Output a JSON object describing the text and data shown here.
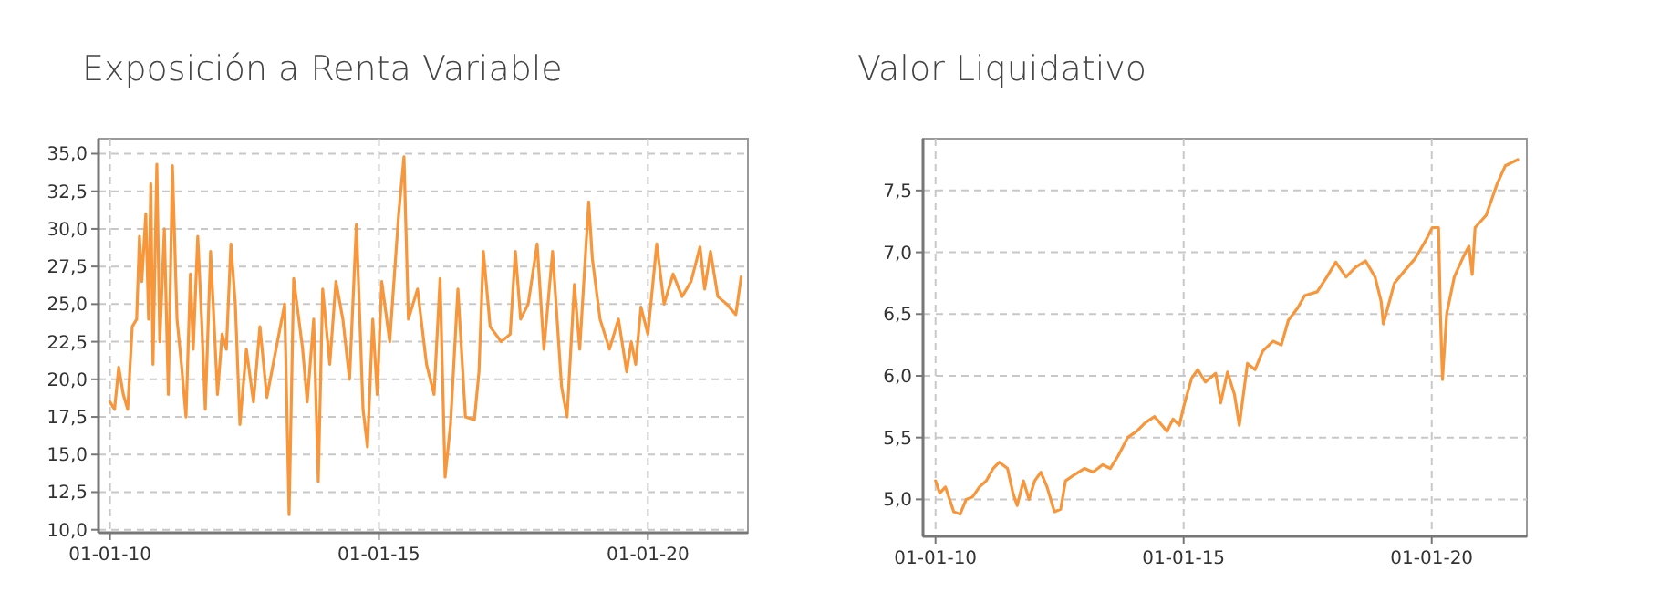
{
  "chart_data": [
    {
      "type": "line",
      "title": "Exposición a Renta Variable",
      "xlim": [
        "2009-10-15",
        "2021-11-10"
      ],
      "ylim": [
        9.8,
        36
      ],
      "xticks": [
        {
          "value": "2010-01-01",
          "label": "01-01-10"
        },
        {
          "value": "2015-01-01",
          "label": "01-01-15"
        },
        {
          "value": "2020-01-01",
          "label": "01-01-20"
        }
      ],
      "yticks": [
        {
          "value": 10,
          "label": "10,0"
        },
        {
          "value": 12.5,
          "label": "12,5"
        },
        {
          "value": 15,
          "label": "15,0"
        },
        {
          "value": 17.5,
          "label": "17,5"
        },
        {
          "value": 20,
          "label": "20,0"
        },
        {
          "value": 22.5,
          "label": "22,5"
        },
        {
          "value": 25,
          "label": "25,0"
        },
        {
          "value": 27.5,
          "label": "27,5"
        },
        {
          "value": 30,
          "label": "30,0"
        },
        {
          "value": 32.5,
          "label": "32,5"
        },
        {
          "value": 35,
          "label": "35,0"
        }
      ],
      "grid": true,
      "marker": "none",
      "line_style": "solid",
      "x": [
        "2010-01-01",
        "2010-02-01",
        "2010-03-01",
        "2010-04-01",
        "2010-05-01",
        "2010-06-01",
        "2010-07-01",
        "2010-07-20",
        "2010-08-05",
        "2010-09-01",
        "2010-09-20",
        "2010-10-05",
        "2010-10-20",
        "2010-11-15",
        "2010-12-05",
        "2011-01-05",
        "2011-02-01",
        "2011-03-01",
        "2011-04-01",
        "2011-05-01",
        "2011-06-01",
        "2011-07-01",
        "2011-07-20",
        "2011-08-20",
        "2011-09-15",
        "2011-10-10",
        "2011-11-15",
        "2012-01-01",
        "2012-02-01",
        "2012-03-01",
        "2012-04-01",
        "2012-05-01",
        "2012-06-01",
        "2012-07-15",
        "2012-09-01",
        "2012-10-15",
        "2012-12-01",
        "2013-02-01",
        "2013-04-01",
        "2013-05-01",
        "2013-06-01",
        "2013-08-01",
        "2013-09-01",
        "2013-10-15",
        "2013-11-15",
        "2013-12-15",
        "2014-02-01",
        "2014-03-15",
        "2014-05-01",
        "2014-06-15",
        "2014-08-01",
        "2014-09-15",
        "2014-10-15",
        "2014-11-20",
        "2014-12-20",
        "2015-01-20",
        "2015-03-15",
        "2015-05-15",
        "2015-06-20",
        "2015-07-20",
        "2015-09-20",
        "2015-11-20",
        "2016-01-10",
        "2016-02-20",
        "2016-03-25",
        "2016-05-01",
        "2016-06-20",
        "2016-08-10",
        "2016-10-10",
        "2016-11-10",
        "2016-12-10",
        "2017-01-25",
        "2017-04-10",
        "2017-06-10",
        "2017-07-15",
        "2017-08-20",
        "2017-10-10",
        "2017-12-10",
        "2018-01-25",
        "2018-03-25",
        "2018-05-25",
        "2018-07-01",
        "2018-08-20",
        "2018-09-25",
        "2018-11-25",
        "2018-12-20",
        "2019-02-10",
        "2019-04-15",
        "2019-06-15",
        "2019-08-10",
        "2019-09-10",
        "2019-10-10",
        "2019-11-15",
        "2020-01-01",
        "2020-03-01",
        "2020-04-20",
        "2020-06-20",
        "2020-08-20",
        "2020-10-20",
        "2020-12-20",
        "2021-01-20",
        "2021-03-01",
        "2021-04-20",
        "2021-06-20",
        "2021-08-20",
        "2021-09-25"
      ],
      "series": [
        {
          "color": "#f7963a",
          "values": [
            18.5,
            18,
            20.8,
            19,
            18,
            23.5,
            24,
            29.5,
            26.5,
            31,
            24,
            33,
            21,
            34.3,
            22.5,
            30,
            19,
            34.2,
            24,
            21,
            17.5,
            27,
            22,
            29.5,
            24,
            18,
            28.5,
            19,
            23,
            22,
            29,
            25,
            17,
            22,
            18.5,
            23.5,
            18.8,
            22,
            25,
            11,
            26.7,
            22,
            18.5,
            24,
            13.2,
            26,
            21,
            26.5,
            24,
            20,
            30.3,
            18,
            15.5,
            24,
            19,
            26.5,
            22.5,
            31,
            34.8,
            24,
            26,
            21,
            19,
            26.7,
            13.5,
            17,
            26,
            17.5,
            17.3,
            20.5,
            28.5,
            23.5,
            22.5,
            23,
            28.5,
            24,
            25,
            29,
            22,
            28.5,
            19.5,
            17.5,
            26.3,
            22,
            31.8,
            28,
            24,
            22,
            24,
            20.5,
            22.5,
            21,
            24.8,
            23,
            29,
            25,
            27,
            25.5,
            26.5,
            28.8,
            26,
            28.5,
            25.5,
            25,
            24.3,
            26.8
          ]
        }
      ]
    },
    {
      "type": "line",
      "title": "Valor Liquidativo",
      "xlim": [
        "2009-10-01",
        "2021-12-01"
      ],
      "ylim": [
        4.7,
        7.92
      ],
      "xticks": [
        {
          "value": "2010-01-01",
          "label": "01-01-10"
        },
        {
          "value": "2015-01-01",
          "label": "01-01-15"
        },
        {
          "value": "2020-01-01",
          "label": "01-01-20"
        }
      ],
      "yticks": [
        {
          "value": 5,
          "label": "5,0"
        },
        {
          "value": 5.5,
          "label": "5,5"
        },
        {
          "value": 6,
          "label": "6,0"
        },
        {
          "value": 6.5,
          "label": "6,5"
        },
        {
          "value": 7,
          "label": "7,0"
        },
        {
          "value": 7.5,
          "label": "7,5"
        }
      ],
      "grid": true,
      "marker": "none",
      "line_style": "solid",
      "x": [
        "2010-01-01",
        "2010-02-01",
        "2010-03-15",
        "2010-05-15",
        "2010-07-01",
        "2010-08-15",
        "2010-10-01",
        "2010-11-20",
        "2011-01-10",
        "2011-03-01",
        "2011-04-15",
        "2011-06-15",
        "2011-07-25",
        "2011-08-25",
        "2011-10-10",
        "2011-11-20",
        "2012-01-01",
        "2012-02-15",
        "2012-04-01",
        "2012-05-25",
        "2012-07-10",
        "2012-08-15",
        "2012-10-20",
        "2013-01-01",
        "2013-03-05",
        "2013-05-15",
        "2013-07-10",
        "2013-09-05",
        "2013-11-15",
        "2014-01-20",
        "2014-03-25",
        "2014-06-01",
        "2014-09-01",
        "2014-10-15",
        "2014-12-01",
        "2015-01-01",
        "2015-03-01",
        "2015-04-15",
        "2015-06-10",
        "2015-08-25",
        "2015-10-01",
        "2015-11-20",
        "2016-01-10",
        "2016-02-15",
        "2016-04-15",
        "2016-06-10",
        "2016-08-05",
        "2016-10-20",
        "2016-12-20",
        "2017-02-10",
        "2017-04-20",
        "2017-06-10",
        "2017-09-10",
        "2017-11-20",
        "2018-01-25",
        "2018-04-10",
        "2018-06-20",
        "2018-09-01",
        "2018-11-10",
        "2018-12-25",
        "2019-01-10",
        "2019-04-01",
        "2019-06-15",
        "2019-09-01",
        "2019-11-20",
        "2020-01-05",
        "2020-02-20",
        "2020-03-05",
        "2020-03-20",
        "2020-04-20",
        "2020-06-15",
        "2020-08-15",
        "2020-10-01",
        "2020-10-25",
        "2020-11-15",
        "2021-02-05",
        "2021-04-25",
        "2021-06-25",
        "2021-09-25"
      ],
      "series": [
        {
          "color": "#f7963a",
          "values": [
            5.15,
            5.05,
            5.1,
            4.9,
            4.88,
            5,
            5.02,
            5.1,
            5.15,
            5.25,
            5.3,
            5.25,
            5.05,
            4.95,
            5.15,
            5,
            5.15,
            5.22,
            5.1,
            4.9,
            4.92,
            5.15,
            5.2,
            5.25,
            5.22,
            5.28,
            5.25,
            5.35,
            5.5,
            5.55,
            5.62,
            5.67,
            5.55,
            5.65,
            5.6,
            5.75,
            5.98,
            6.05,
            5.95,
            6.02,
            5.78,
            6.03,
            5.85,
            5.6,
            6.1,
            6.05,
            6.2,
            6.28,
            6.25,
            6.45,
            6.55,
            6.65,
            6.68,
            6.8,
            6.92,
            6.8,
            6.88,
            6.93,
            6.8,
            6.6,
            6.42,
            6.75,
            6.85,
            6.95,
            7.1,
            7.2,
            7.2,
            6.5,
            5.97,
            6.5,
            6.8,
            6.95,
            7.05,
            6.82,
            7.2,
            7.3,
            7.55,
            7.7,
            7.75
          ]
        }
      ]
    }
  ]
}
